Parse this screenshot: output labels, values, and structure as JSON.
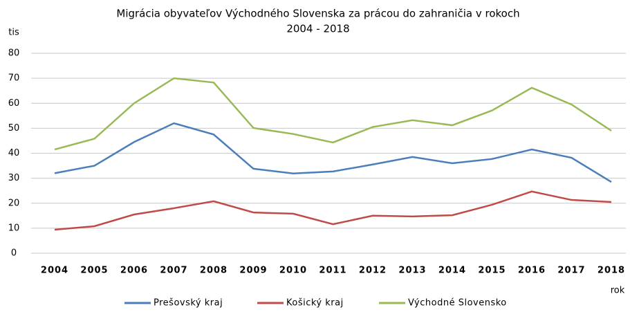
{
  "chart_data": {
    "type": "line",
    "title": [
      "Migrácia obyvateľov Východného Slovenska za prácou do zahraničia v rokoch",
      "2004 - 2018"
    ],
    "y_label": "tis",
    "x_label": "rok",
    "categories": [
      "2004",
      "2005",
      "2006",
      "2007",
      "2008",
      "2009",
      "2010",
      "2011",
      "2012",
      "2013",
      "2014",
      "2015",
      "2016",
      "2017",
      "2018"
    ],
    "series": [
      {
        "name": "Prešovský kraj",
        "color": "#4a7ebb",
        "values": [
          32,
          35,
          44.5,
          52,
          47.5,
          33.8,
          31.9,
          32.7,
          35.5,
          38.5,
          36,
          37.7,
          41.5,
          38.2,
          28.5
        ]
      },
      {
        "name": "Košický kraj",
        "color": "#be4b48",
        "values": [
          9.4,
          10.8,
          15.5,
          18,
          20.8,
          16.3,
          15.8,
          11.6,
          15,
          14.7,
          15.2,
          19.4,
          24.7,
          21.3,
          20.5
        ]
      },
      {
        "name": "Východné Slovensko",
        "color": "#98b954",
        "values": [
          41.5,
          45.8,
          60,
          70,
          68.3,
          50.1,
          47.7,
          44.3,
          50.5,
          53.2,
          51.2,
          57.1,
          66.2,
          59.5,
          49
        ]
      }
    ],
    "ylim": [
      0,
      80
    ],
    "yticks": [
      0,
      10,
      20,
      30,
      40,
      50,
      60,
      70,
      80
    ],
    "grid": true
  }
}
